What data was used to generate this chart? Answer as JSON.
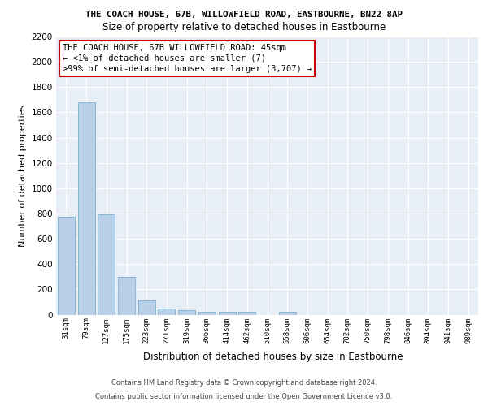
{
  "title": "THE COACH HOUSE, 67B, WILLOWFIELD ROAD, EASTBOURNE, BN22 8AP",
  "subtitle": "Size of property relative to detached houses in Eastbourne",
  "xlabel": "Distribution of detached houses by size in Eastbourne",
  "ylabel": "Number of detached properties",
  "footer1": "Contains HM Land Registry data © Crown copyright and database right 2024.",
  "footer2": "Contains public sector information licensed under the Open Government Licence v3.0.",
  "annotation_line1": "THE COACH HOUSE, 67B WILLOWFIELD ROAD: 45sqm",
  "annotation_line2": "← <1% of detached houses are smaller (7)",
  "annotation_line3": ">99% of semi-detached houses are larger (3,707) →",
  "categories": [
    "31sqm",
    "79sqm",
    "127sqm",
    "175sqm",
    "223sqm",
    "271sqm",
    "319sqm",
    "366sqm",
    "414sqm",
    "462sqm",
    "510sqm",
    "558sqm",
    "606sqm",
    "654sqm",
    "702sqm",
    "750sqm",
    "798sqm",
    "846sqm",
    "894sqm",
    "941sqm",
    "989sqm"
  ],
  "values": [
    775,
    1680,
    795,
    300,
    110,
    45,
    35,
    25,
    22,
    20,
    0,
    22,
    0,
    0,
    0,
    0,
    0,
    0,
    0,
    0,
    0
  ],
  "bar_color": "#b8d0e8",
  "bar_edge_color": "#7aadd0",
  "background_color": "#e8eef5",
  "ylim": [
    0,
    2200
  ],
  "yticks": [
    0,
    200,
    400,
    600,
    800,
    1000,
    1200,
    1400,
    1600,
    1800,
    2000,
    2200
  ],
  "annotation_box_color": "#cc0000",
  "grid_color": "#ffffff"
}
